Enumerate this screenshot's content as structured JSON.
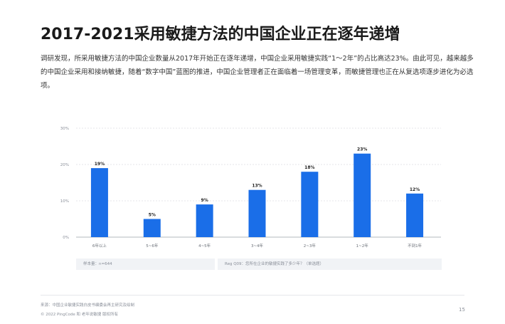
{
  "page": {
    "title": "2017-2021采用敏捷方法的中国企业正在逐年递增",
    "intro": "调研发现，所采用敏捷方法的中国企业数量从2017年开始正在逐年递增，中国企业采用敏捷实践“1～2年”的占比高达23%。由此可见，越来越多的中国企业采用和接纳敏捷，随着“数字中国”蓝图的推进，中国企业管理者正在面临着一场管理变革，而敏捷管理也正在从复选项逐步进化为必选项。",
    "sample_note": "样本量：n=644",
    "question_note": "Reg Q09：您所在企业的敏捷实践了多少年？（单选题）",
    "source": "来源：中国企业敏捷实践白皮书编委会再主研究及绘制",
    "copyright": "© 2022 PingCode 和 老年说敏捷 版权所有",
    "page_number": "15"
  },
  "chart_data": {
    "type": "bar",
    "categories": [
      "6年以上",
      "5~6年",
      "4~5年",
      "3~4年",
      "2~3年",
      "1~2年",
      "不到1年"
    ],
    "values": [
      19,
      5,
      9,
      13,
      18,
      23,
      12
    ],
    "value_labels": [
      "19%",
      "5%",
      "9%",
      "13%",
      "18%",
      "23%",
      "12%"
    ],
    "y_ticks": [
      0,
      10,
      20,
      30
    ],
    "y_tick_labels": [
      "0%",
      "10%",
      "20%",
      "30%"
    ],
    "ylim": [
      0,
      30
    ],
    "grid": true,
    "bar_color": "#1a6ee8",
    "grid_color": "#c9ccd1",
    "title": "",
    "xlabel": "",
    "ylabel": ""
  }
}
